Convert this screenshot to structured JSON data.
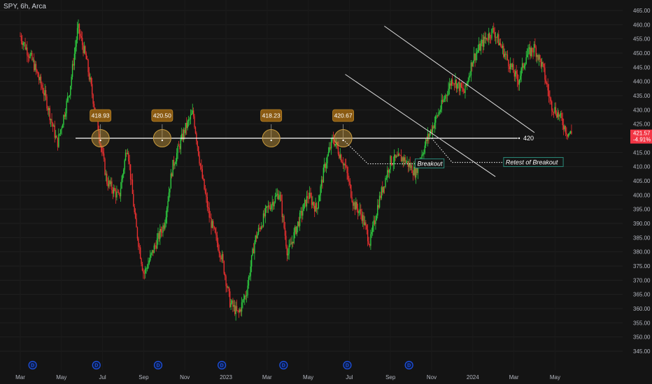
{
  "header": {
    "symbol": "SPY, 6h, Arca"
  },
  "colors": {
    "background": "#141414",
    "up": "#2ecc40",
    "down": "#e83030",
    "line": "#ffffff",
    "peak_box": "#8a5a12",
    "circle": "#c89a3c",
    "price_tag": "#f23645",
    "note_border": "#2a8a7a",
    "dividend": "#1e53e5"
  },
  "chart_data": {
    "type": "candlestick",
    "y_axis": {
      "min": 345,
      "max": 465,
      "step": 5,
      "ticks": [
        "345.00",
        "350.00",
        "355.00",
        "360.00",
        "365.00",
        "370.00",
        "375.00",
        "380.00",
        "385.00",
        "390.00",
        "395.00",
        "400.00",
        "405.00",
        "410.00",
        "415.00",
        "420.00",
        "425.00",
        "430.00",
        "435.00",
        "440.00",
        "445.00",
        "450.00",
        "455.00",
        "460.00",
        "465.00"
      ]
    },
    "x_axis": {
      "ticks": [
        "Mar",
        "May",
        "Jul",
        "Sep",
        "Nov",
        "2023",
        "Mar",
        "May",
        "Jul",
        "Sep",
        "Nov",
        "2024",
        "Mar",
        "May"
      ]
    },
    "price_path": [
      [
        0,
        456
      ],
      [
        0.3,
        447
      ],
      [
        0.6,
        435
      ],
      [
        0.9,
        418
      ],
      [
        1.2,
        437
      ],
      [
        1.4,
        459
      ],
      [
        1.6,
        448
      ],
      [
        1.9,
        423
      ],
      [
        2.1,
        405
      ],
      [
        2.4,
        399
      ],
      [
        2.6,
        418
      ],
      [
        2.8,
        390
      ],
      [
        3.0,
        372
      ],
      [
        3.3,
        383
      ],
      [
        3.5,
        390
      ],
      [
        3.7,
        410
      ],
      [
        4.0,
        423
      ],
      [
        4.2,
        429
      ],
      [
        4.4,
        408
      ],
      [
        4.6,
        392
      ],
      [
        4.9,
        378
      ],
      [
        5.1,
        362
      ],
      [
        5.3,
        358
      ],
      [
        5.5,
        366
      ],
      [
        5.7,
        384
      ],
      [
        6.0,
        395
      ],
      [
        6.3,
        401
      ],
      [
        6.5,
        379
      ],
      [
        6.7,
        388
      ],
      [
        7.0,
        400
      ],
      [
        7.2,
        395
      ],
      [
        7.4,
        410
      ],
      [
        7.6,
        420
      ],
      [
        7.9,
        410
      ],
      [
        8.1,
        397
      ],
      [
        8.3,
        393
      ],
      [
        8.5,
        383
      ],
      [
        8.7,
        397
      ],
      [
        9.0,
        412
      ],
      [
        9.3,
        413
      ],
      [
        9.6,
        408
      ],
      [
        9.9,
        420
      ],
      [
        10.2,
        430
      ],
      [
        10.5,
        441
      ],
      [
        10.8,
        436
      ],
      [
        11.0,
        448
      ],
      [
        11.3,
        455
      ],
      [
        11.5,
        458
      ],
      [
        11.8,
        449
      ],
      [
        12.1,
        440
      ],
      [
        12.3,
        449
      ],
      [
        12.5,
        452
      ],
      [
        12.7,
        445
      ],
      [
        12.9,
        432
      ],
      [
        13.1,
        428
      ],
      [
        13.3,
        422
      ],
      [
        13.4,
        421.57
      ]
    ],
    "level": {
      "value": 420,
      "label": "420"
    },
    "touches": [
      {
        "label": "418.93",
        "x": 1.95
      },
      {
        "label": "420.50",
        "x": 3.45
      },
      {
        "label": "418.23",
        "x": 6.1
      },
      {
        "label": "420.67",
        "x": 7.85
      }
    ],
    "channel": {
      "upper": [
        [
          8.85,
          459.5
        ],
        [
          12.5,
          422
        ]
      ],
      "lower": [
        [
          7.9,
          442.5
        ],
        [
          11.55,
          406.5
        ]
      ]
    },
    "annotations": [
      {
        "text": "Breakout",
        "from": [
          7.85,
          419.5
        ],
        "corner": [
          8.45,
          411
        ],
        "to": [
          9.6,
          411
        ]
      },
      {
        "text": "Retest of Breakout",
        "from": [
          10.0,
          420
        ],
        "corner": [
          10.5,
          411.5
        ],
        "to": [
          11.75,
          411.5
        ]
      }
    ],
    "last_price": {
      "value": "421.57",
      "change": "-4.91%"
    },
    "dividends": [
      {
        "label": "D",
        "x": 0.3
      },
      {
        "label": "D",
        "x": 1.85
      },
      {
        "label": "D",
        "x": 3.35
      },
      {
        "label": "D",
        "x": 4.9
      },
      {
        "label": "D",
        "x": 6.4
      },
      {
        "label": "D",
        "x": 7.95
      },
      {
        "label": "D",
        "x": 9.45
      }
    ]
  }
}
